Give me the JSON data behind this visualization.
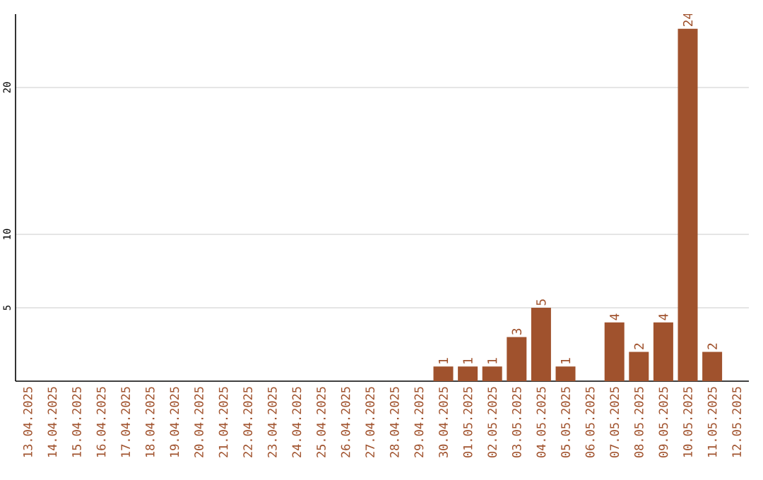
{
  "chart_data": {
    "type": "bar",
    "categories": [
      "13.04.2025",
      "14.04.2025",
      "15.04.2025",
      "16.04.2025",
      "17.04.2025",
      "18.04.2025",
      "19.04.2025",
      "20.04.2025",
      "21.04.2025",
      "22.04.2025",
      "23.04.2025",
      "24.04.2025",
      "25.04.2025",
      "26.04.2025",
      "27.04.2025",
      "28.04.2025",
      "29.04.2025",
      "30.04.2025",
      "01.05.2025",
      "02.05.2025",
      "03.05.2025",
      "04.05.2025",
      "05.05.2025",
      "06.05.2025",
      "07.05.2025",
      "08.05.2025",
      "09.05.2025",
      "10.05.2025",
      "11.05.2025",
      "12.05.2025"
    ],
    "values": [
      0,
      0,
      0,
      0,
      0,
      0,
      0,
      0,
      0,
      0,
      0,
      0,
      0,
      0,
      0,
      0,
      0,
      1,
      1,
      1,
      3,
      5,
      1,
      0,
      4,
      2,
      4,
      24,
      2,
      0
    ],
    "value_labels": [
      null,
      null,
      null,
      null,
      null,
      null,
      null,
      null,
      null,
      null,
      null,
      null,
      null,
      null,
      null,
      null,
      null,
      "1",
      "1",
      "1",
      "3",
      "5",
      "1",
      null,
      "4",
      "2",
      "4",
      "24",
      "2",
      null
    ],
    "color": "#a0522d",
    "ylim": [
      0,
      25
    ],
    "yticks": [
      5,
      10,
      20
    ],
    "grid": "y"
  }
}
